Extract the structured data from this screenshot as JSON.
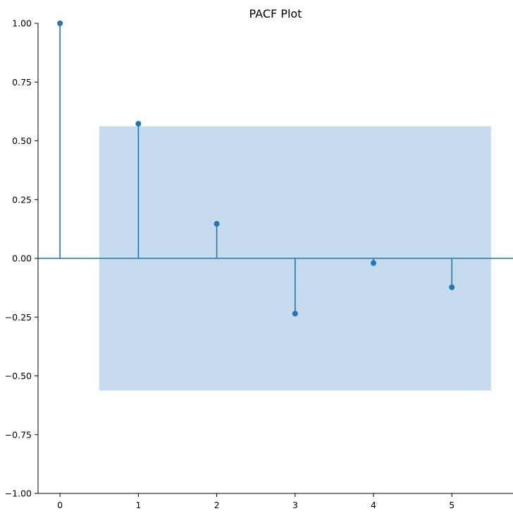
{
  "chart_data": {
    "type": "stem",
    "title": "PACF Plot",
    "xlabel": "",
    "ylabel": "",
    "x": [
      0,
      1,
      2,
      3,
      4,
      5
    ],
    "values": [
      1.0,
      0.573,
      0.147,
      -0.235,
      -0.02,
      -0.123
    ],
    "confidence_band": {
      "x_range": [
        0.5,
        5.5
      ],
      "lower": -0.562,
      "upper": 0.562
    },
    "xlim": [
      -0.28,
      5.78
    ],
    "ylim": [
      -1.0,
      1.0
    ],
    "xticks": [
      0,
      1,
      2,
      3,
      4,
      5
    ],
    "xtick_labels": [
      "0",
      "1",
      "2",
      "3",
      "4",
      "5"
    ],
    "yticks": [
      -1.0,
      -0.75,
      -0.5,
      -0.25,
      0.0,
      0.25,
      0.5,
      0.75,
      1.0
    ],
    "ytick_labels": [
      "−1.00",
      "−0.75",
      "−0.50",
      "−0.25",
      "0.00",
      "0.25",
      "0.50",
      "0.75",
      "1.00"
    ],
    "grid": false,
    "colors": {
      "stem": "#1f77b4",
      "band": "#c6dbed",
      "axes": "#000000"
    }
  }
}
